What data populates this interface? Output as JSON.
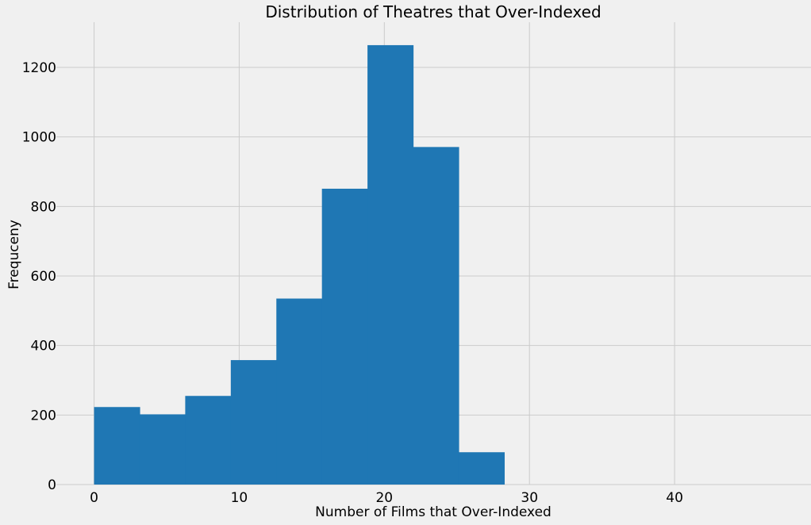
{
  "chart_data": {
    "type": "bar",
    "title": "Distribution of Theatres that Over-Indexed",
    "xlabel": "Number of Films that Over-Indexed",
    "ylabel": "Frequceny",
    "xlim": [
      -2.6,
      49.4
    ],
    "ylim": [
      0,
      1330
    ],
    "xticks": [
      0,
      10,
      20,
      30,
      40
    ],
    "yticks": [
      0,
      200,
      400,
      600,
      800,
      1000,
      1200
    ],
    "bins": [
      {
        "x0": 0.0,
        "x1": 3.14,
        "value": 223
      },
      {
        "x0": 3.14,
        "x1": 6.28,
        "value": 202
      },
      {
        "x0": 6.28,
        "x1": 9.42,
        "value": 255
      },
      {
        "x0": 9.42,
        "x1": 12.56,
        "value": 358
      },
      {
        "x0": 12.56,
        "x1": 15.7,
        "value": 535
      },
      {
        "x0": 15.7,
        "x1": 18.84,
        "value": 851
      },
      {
        "x0": 18.84,
        "x1": 21.98,
        "value": 1264
      },
      {
        "x0": 21.98,
        "x1": 25.12,
        "value": 971
      },
      {
        "x0": 25.12,
        "x1": 28.26,
        "value": 93
      }
    ],
    "grid": true,
    "colors": {
      "bar": "#1f77b4",
      "background": "#f0f0f0",
      "grid": "#cbcbcb"
    }
  }
}
